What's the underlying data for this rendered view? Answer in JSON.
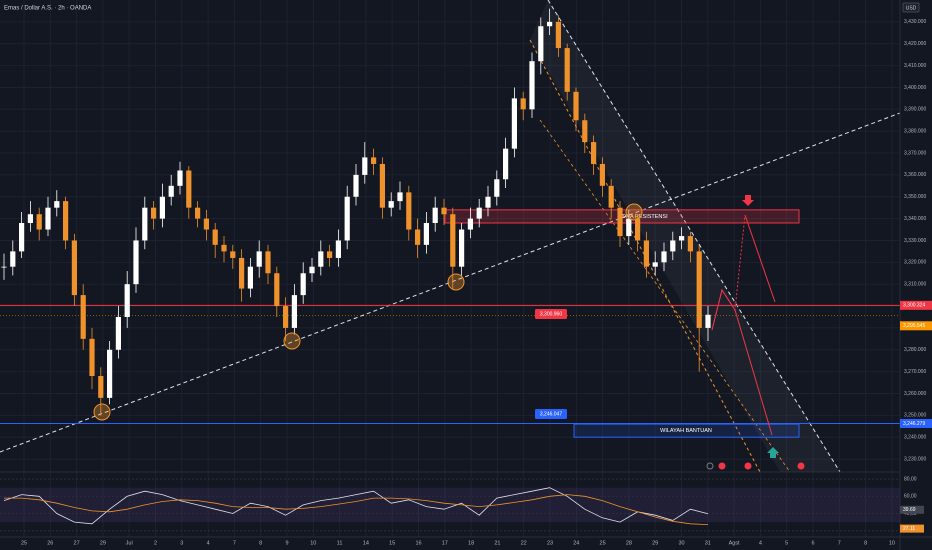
{
  "chart_data": [
    {
      "type": "candlestick",
      "title": "Emas / Dollar A.S. · 2h · OANDA",
      "currency": "USD",
      "x_labels": [
        "25",
        "26",
        "27",
        "29",
        "Jul",
        "2",
        "3",
        "4",
        "7",
        "8",
        "9",
        "10",
        "11",
        "14",
        "15",
        "16",
        "17",
        "18",
        "21",
        "22",
        "23",
        "24",
        "25",
        "28",
        "29",
        "30",
        "31",
        "Agst",
        "4",
        "5",
        "6",
        "7",
        "8",
        "10"
      ],
      "close": [
        3318,
        3325,
        3338,
        3342,
        3335,
        3345,
        3348,
        3330,
        3305,
        3285,
        3268,
        3258,
        3280,
        3295,
        3310,
        3330,
        3345,
        3340,
        3350,
        3355,
        3362,
        3345,
        3340,
        3335,
        3328,
        3325,
        3322,
        3308,
        3318,
        3325,
        3315,
        3300,
        3290,
        3305,
        3315,
        3318,
        3325,
        3322,
        3330,
        3350,
        3360,
        3368,
        3365,
        3345,
        3348,
        3352,
        3335,
        3328,
        3338,
        3345,
        3342,
        3318,
        3335,
        3340,
        3345,
        3350,
        3358,
        3372,
        3395,
        3390,
        3412,
        3428,
        3430,
        3418,
        3398,
        3385,
        3375,
        3365,
        3355,
        3345,
        3332,
        3340,
        3330,
        3318,
        3320,
        3325,
        3330,
        3332,
        3325,
        3290,
        3296
      ],
      "high": [
        3324,
        3330,
        3343,
        3348,
        3345,
        3350,
        3353,
        3350,
        3333,
        3310,
        3290,
        3272,
        3284,
        3300,
        3316,
        3336,
        3350,
        3348,
        3356,
        3360,
        3366,
        3364,
        3348,
        3344,
        3338,
        3332,
        3328,
        3326,
        3322,
        3330,
        3328,
        3318,
        3304,
        3310,
        3320,
        3322,
        3330,
        3328,
        3335,
        3355,
        3365,
        3375,
        3372,
        3368,
        3352,
        3357,
        3355,
        3340,
        3343,
        3350,
        3349,
        3345,
        3338,
        3345,
        3349,
        3355,
        3362,
        3377,
        3400,
        3398,
        3416,
        3432,
        3436,
        3433,
        3420,
        3400,
        3388,
        3378,
        3368,
        3358,
        3348,
        3344,
        3342,
        3334,
        3325,
        3329,
        3334,
        3336,
        3334,
        3328,
        3300
      ],
      "low": [
        3312,
        3314,
        3322,
        3334,
        3330,
        3332,
        3341,
        3326,
        3300,
        3280,
        3262,
        3250,
        3255,
        3276,
        3290,
        3306,
        3326,
        3335,
        3336,
        3346,
        3351,
        3340,
        3336,
        3330,
        3322,
        3320,
        3317,
        3302,
        3304,
        3313,
        3310,
        3295,
        3284,
        3287,
        3301,
        3311,
        3314,
        3318,
        3318,
        3326,
        3346,
        3356,
        3360,
        3340,
        3341,
        3344,
        3330,
        3322,
        3324,
        3334,
        3337,
        3308,
        3314,
        3331,
        3336,
        3341,
        3346,
        3354,
        3368,
        3385,
        3386,
        3406,
        3424,
        3414,
        3394,
        3380,
        3370,
        3360,
        3350,
        3340,
        3327,
        3328,
        3325,
        3313,
        3314,
        3316,
        3321,
        3326,
        3320,
        3270,
        3284
      ],
      "up_color": "#ffffff",
      "down_color": "#f0922b",
      "ylim": [
        3225,
        3440
      ],
      "yticks": [
        {
          "value": 3230,
          "label": "3,230.000"
        },
        {
          "value": 3240,
          "label": "3,240.000"
        },
        {
          "value": 3250,
          "label": "3,250.000"
        },
        {
          "value": 3260,
          "label": "3,260.000"
        },
        {
          "value": 3270,
          "label": "3,270.000"
        },
        {
          "value": 3280,
          "label": "3,280.000"
        },
        {
          "value": 3290,
          "label": "3,290.000"
        },
        {
          "value": 3300,
          "label": "3,300.000"
        },
        {
          "value": 3310,
          "label": "3,310.000"
        },
        {
          "value": 3320,
          "label": "3,320.000"
        },
        {
          "value": 3330,
          "label": "3,330.000"
        },
        {
          "value": 3340,
          "label": "3,340.000"
        },
        {
          "value": 3350,
          "label": "3,350.000"
        },
        {
          "value": 3360,
          "label": "3,360.000"
        },
        {
          "value": 3370,
          "label": "3,370.000"
        },
        {
          "value": 3380,
          "label": "3,380.000"
        },
        {
          "value": 3390,
          "label": "3,390.000"
        },
        {
          "value": 3400,
          "label": "3,400.000"
        },
        {
          "value": 3410,
          "label": "3,410.000"
        },
        {
          "value": 3420,
          "label": "3,420.000"
        },
        {
          "value": 3430,
          "label": "3,430.000"
        }
      ],
      "levels": [
        {
          "value": 3300.324,
          "label": "3,300.324",
          "color": "#f23645"
        },
        {
          "value": 3295.545,
          "label": "3,295.545",
          "color": "#ff9800"
        },
        {
          "value": 3246.279,
          "label": "3,246.279",
          "color": "#2962ff"
        }
      ],
      "price_notes": [
        {
          "value": 3300.96,
          "label": "3,300.960",
          "color": "#f23645"
        },
        {
          "value": 3246.047,
          "label": "3,246.047",
          "color": "#2962ff"
        }
      ],
      "zones": [
        {
          "label": "ZONA RESISTENSI",
          "low": 3338,
          "high": 3344,
          "color": "#f23645"
        },
        {
          "label": "WILAYAH BANTUAN",
          "low": 3240,
          "high": 3246,
          "color": "#2962ff"
        }
      ]
    },
    {
      "type": "line",
      "name": "RSI",
      "series": [
        {
          "color": "#e0e3eb",
          "values": [
            55,
            62,
            60,
            40,
            30,
            28,
            45,
            60,
            66,
            62,
            55,
            50,
            45,
            40,
            52,
            48,
            38,
            50,
            55,
            58,
            62,
            66,
            52,
            56,
            48,
            45,
            52,
            38,
            58,
            62,
            66,
            70,
            60,
            45,
            35,
            30,
            42,
            38,
            32,
            45,
            39.69
          ]
        },
        {
          "color": "#f0922b",
          "values": [
            58,
            58,
            56,
            52,
            47,
            43,
            42,
            45,
            50,
            54,
            56,
            55,
            52,
            48,
            47,
            47,
            45,
            46,
            48,
            51,
            54,
            58,
            58,
            57,
            55,
            52,
            50,
            48,
            50,
            53,
            56,
            60,
            62,
            60,
            55,
            48,
            42,
            36,
            31,
            28,
            27.11
          ]
        }
      ],
      "y2lim": [
        15,
        86
      ],
      "yticks": [
        {
          "value": 20,
          "label": "20,00"
        },
        {
          "value": 40,
          "label": "40,00"
        },
        {
          "value": 60,
          "label": "60,00"
        },
        {
          "value": 80,
          "label": "80,00"
        }
      ]
    }
  ]
}
